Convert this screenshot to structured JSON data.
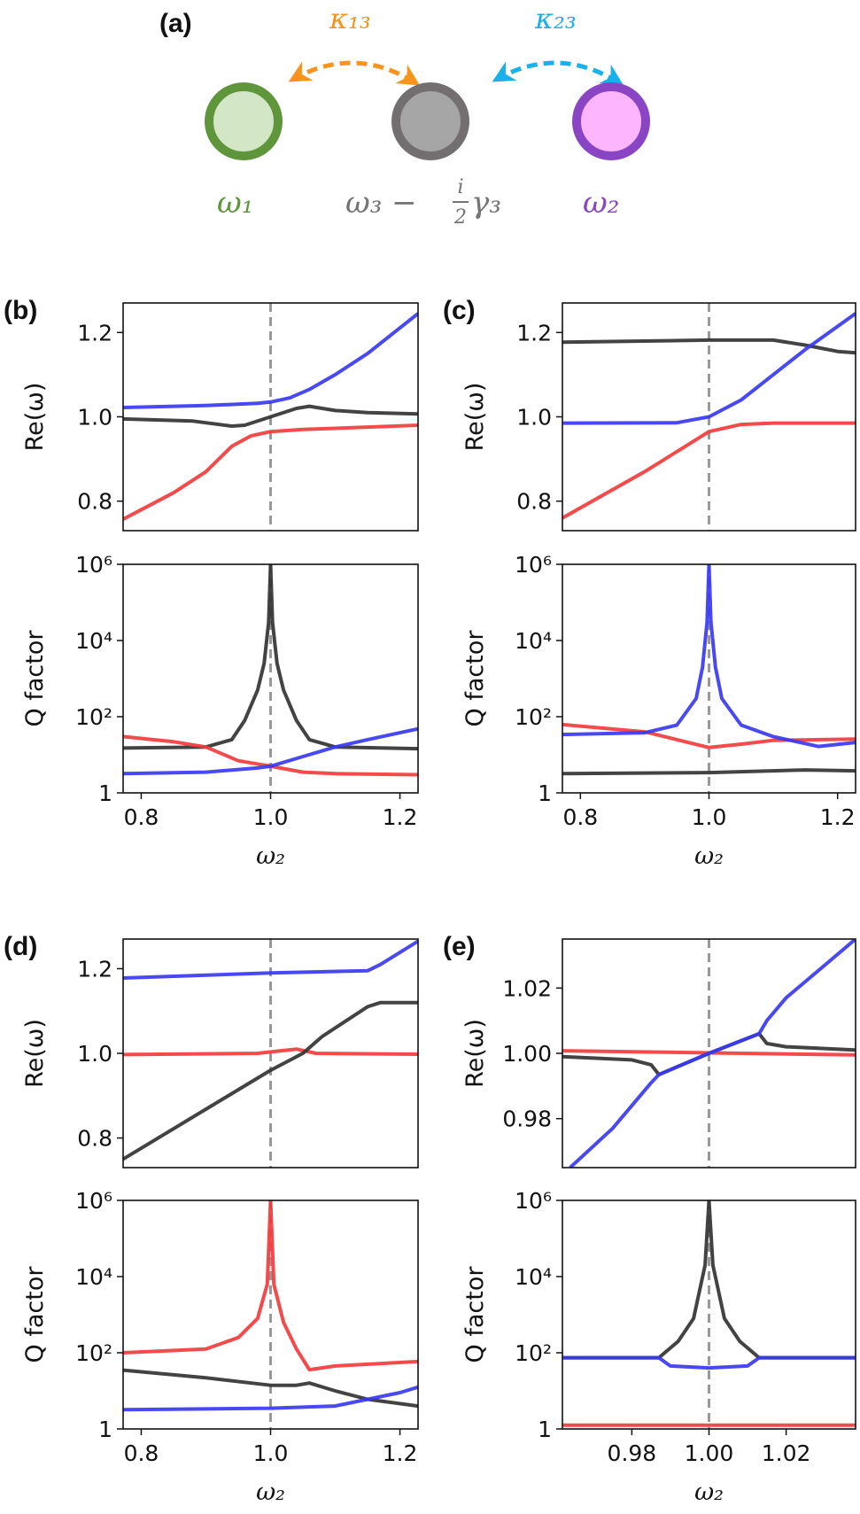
{
  "diagram": {
    "panel_label": "(a)",
    "coupling_13": "κ₁₃",
    "coupling_23": "κ₂₃",
    "node1_label": "ω₁",
    "node2_label": "ω₂",
    "node3_label": {
      "main": "ω₃ −",
      "frac_num": "i",
      "frac_den": "2",
      "tail": "γ₃"
    },
    "colors": {
      "node1": "#5f963c",
      "node1_fill": "#d3e7c6",
      "node3": "#736e70",
      "node3_fill": "#a6a6a6",
      "node2": "#8a45c4",
      "node2_fill": "#fdb6fd",
      "coupling_13": "#f7941d",
      "coupling_23": "#1ab0ec"
    }
  },
  "colors": {
    "blue": "#3a3af2",
    "red": "#f23c3c",
    "black": "#333333",
    "dashed": "#999999"
  },
  "chart_data": [
    {
      "panel": "(b)",
      "type": "line",
      "ylabel": "Re(ω)",
      "xlabel": "",
      "xlim": [
        0.772,
        1.228
      ],
      "ylim": [
        0.73,
        1.27
      ],
      "yscale": "linear",
      "yticks": [
        0.8,
        1.0,
        1.2
      ],
      "ytick_labels": [
        "0.8",
        "1.0",
        "1.2"
      ],
      "xticks": [],
      "xtick_labels": [],
      "vline": 1.0,
      "series": [
        {
          "color": "blue",
          "x": [
            0.772,
            0.9,
            0.98,
            1.0,
            1.03,
            1.06,
            1.1,
            1.15,
            1.228
          ],
          "y": [
            1.022,
            1.027,
            1.032,
            1.035,
            1.045,
            1.065,
            1.1,
            1.15,
            1.245
          ]
        },
        {
          "color": "black",
          "x": [
            0.772,
            0.88,
            0.94,
            0.96,
            1.0,
            1.04,
            1.06,
            1.1,
            1.15,
            1.228
          ],
          "y": [
            0.995,
            0.99,
            0.978,
            0.98,
            1.0,
            1.02,
            1.025,
            1.015,
            1.01,
            1.007
          ]
        },
        {
          "color": "red",
          "x": [
            0.772,
            0.85,
            0.9,
            0.94,
            0.97,
            1.0,
            1.05,
            1.228
          ],
          "y": [
            0.757,
            0.82,
            0.87,
            0.93,
            0.955,
            0.965,
            0.97,
            0.98
          ]
        }
      ]
    },
    {
      "panel": "",
      "type": "line",
      "ylabel": "Q factor",
      "xlabel": "ω₂",
      "xlim": [
        0.772,
        1.228
      ],
      "ylim": [
        1,
        1000000
      ],
      "yscale": "log",
      "yticks": [
        1,
        100,
        10000,
        1000000
      ],
      "ytick_labels": [
        "1",
        "10²",
        "10⁴",
        "10⁶"
      ],
      "xticks": [
        0.8,
        1.0,
        1.2
      ],
      "xtick_labels": [
        "0.8",
        "1.0",
        "1.2"
      ],
      "vline": 1.0,
      "series": [
        {
          "color": "black",
          "x": [
            0.772,
            0.9,
            0.94,
            0.96,
            0.98,
            0.99,
            0.997,
            1.0,
            1.003,
            1.01,
            1.02,
            1.04,
            1.06,
            1.1,
            1.228
          ],
          "y": [
            15,
            16,
            25,
            80,
            500,
            2500,
            30000,
            1000000,
            30000,
            2500,
            500,
            80,
            25,
            16,
            14.5
          ]
        },
        {
          "color": "red",
          "x": [
            0.772,
            0.85,
            0.9,
            0.95,
            1.0,
            1.05,
            1.1,
            1.228
          ],
          "y": [
            30,
            22,
            16,
            7,
            5,
            3.5,
            3.2,
            3
          ]
        },
        {
          "color": "blue",
          "x": [
            0.772,
            0.9,
            0.98,
            1.0,
            1.05,
            1.1,
            1.15,
            1.228
          ],
          "y": [
            3.2,
            3.5,
            4.5,
            5,
            9,
            16,
            25,
            48
          ]
        }
      ]
    },
    {
      "panel": "(c)",
      "type": "line",
      "ylabel": "Re(ω)",
      "xlabel": "",
      "xlim": [
        0.772,
        1.228
      ],
      "ylim": [
        0.73,
        1.27
      ],
      "yscale": "linear",
      "yticks": [
        0.8,
        1.0,
        1.2
      ],
      "ytick_labels": [
        "0.8",
        "1.0",
        "1.2"
      ],
      "xticks": [],
      "xtick_labels": [],
      "vline": 1.0,
      "series": [
        {
          "color": "black",
          "x": [
            0.772,
            1.0,
            1.1,
            1.15,
            1.2,
            1.228
          ],
          "y": [
            1.177,
            1.182,
            1.182,
            1.17,
            1.155,
            1.152
          ]
        },
        {
          "color": "blue",
          "x": [
            0.772,
            0.95,
            1.0,
            1.05,
            1.1,
            1.15,
            1.228
          ],
          "y": [
            0.985,
            0.986,
            1.0,
            1.04,
            1.1,
            1.16,
            1.245
          ]
        },
        {
          "color": "red",
          "x": [
            0.772,
            0.9,
            1.0,
            1.05,
            1.1,
            1.228
          ],
          "y": [
            0.76,
            0.87,
            0.965,
            0.982,
            0.985,
            0.985
          ]
        }
      ]
    },
    {
      "panel": "",
      "type": "line",
      "ylabel": "Q factor",
      "xlabel": "ω₂",
      "xlim": [
        0.772,
        1.228
      ],
      "ylim": [
        1,
        1000000
      ],
      "yscale": "log",
      "yticks": [
        1,
        100,
        10000,
        1000000
      ],
      "ytick_labels": [
        "1",
        "10²",
        "10⁴",
        "10⁶"
      ],
      "xticks": [
        0.8,
        1.0,
        1.2
      ],
      "xtick_labels": [
        "0.8",
        "1.0",
        "1.2"
      ],
      "vline": 1.0,
      "series": [
        {
          "color": "red",
          "x": [
            0.772,
            0.9,
            0.95,
            1.0,
            1.05,
            1.1,
            1.228
          ],
          "y": [
            62,
            40,
            25,
            15.5,
            19,
            24,
            26
          ]
        },
        {
          "color": "blue",
          "x": [
            0.772,
            0.9,
            0.95,
            0.98,
            0.99,
            0.997,
            1.0,
            1.003,
            1.01,
            1.02,
            1.05,
            1.1,
            1.17,
            1.228
          ],
          "y": [
            34,
            38,
            60,
            300,
            2000,
            30000,
            1000000,
            30000,
            2000,
            300,
            60,
            30,
            16.5,
            21
          ]
        },
        {
          "color": "black",
          "x": [
            0.772,
            1.0,
            1.15,
            1.228
          ],
          "y": [
            3.2,
            3.4,
            4,
            3.8
          ]
        }
      ]
    },
    {
      "panel": "(d)",
      "type": "line",
      "ylabel": "Re(ω)",
      "xlabel": "",
      "xlim": [
        0.772,
        1.228
      ],
      "ylim": [
        0.73,
        1.27
      ],
      "yscale": "linear",
      "yticks": [
        0.8,
        1.0,
        1.2
      ],
      "ytick_labels": [
        "0.8",
        "1.0",
        "1.2"
      ],
      "xticks": [],
      "xtick_labels": [],
      "vline": 1.0,
      "series": [
        {
          "color": "blue",
          "x": [
            0.772,
            1.0,
            1.15,
            1.17,
            1.228
          ],
          "y": [
            1.178,
            1.19,
            1.195,
            1.21,
            1.265
          ]
        },
        {
          "color": "red",
          "x": [
            0.772,
            0.98,
            1.04,
            1.07,
            1.228
          ],
          "y": [
            0.997,
            1.0,
            1.01,
            1.0,
            0.998
          ]
        },
        {
          "color": "black",
          "x": [
            0.772,
            1.0,
            1.05,
            1.08,
            1.15,
            1.17,
            1.228
          ],
          "y": [
            0.75,
            0.96,
            1.0,
            1.04,
            1.11,
            1.12,
            1.12
          ]
        }
      ]
    },
    {
      "panel": "",
      "type": "line",
      "ylabel": "Q factor",
      "xlabel": "ω₂",
      "xlim": [
        0.772,
        1.228
      ],
      "ylim": [
        1,
        1000000
      ],
      "yscale": "log",
      "yticks": [
        1,
        100,
        10000,
        1000000
      ],
      "ytick_labels": [
        "1",
        "10²",
        "10⁴",
        "10⁶"
      ],
      "xticks": [
        0.8,
        1.0,
        1.2
      ],
      "xtick_labels": [
        "0.8",
        "1.0",
        "1.2"
      ],
      "vline": 1.0,
      "series": [
        {
          "color": "red",
          "x": [
            0.772,
            0.9,
            0.95,
            0.98,
            0.995,
            1.0,
            1.005,
            1.02,
            1.04,
            1.06,
            1.1,
            1.228
          ],
          "y": [
            100,
            126,
            250,
            800,
            6300,
            1000000,
            6300,
            630,
            126,
            36,
            45,
            59
          ]
        },
        {
          "color": "black",
          "x": [
            0.772,
            0.9,
            1.0,
            1.04,
            1.06,
            1.1,
            1.15,
            1.228
          ],
          "y": [
            35,
            22,
            14,
            14,
            16,
            10,
            6,
            4
          ]
        },
        {
          "color": "blue",
          "x": [
            0.772,
            1.0,
            1.1,
            1.2,
            1.228
          ],
          "y": [
            3.2,
            3.5,
            4,
            9,
            12.5
          ]
        }
      ]
    },
    {
      "panel": "(e)",
      "type": "line",
      "ylabel": "Re(ω)",
      "xlabel": "",
      "xlim": [
        0.962,
        1.038
      ],
      "ylim": [
        0.965,
        1.035
      ],
      "yscale": "linear",
      "yticks": [
        0.98,
        1.0,
        1.02
      ],
      "ytick_labels": [
        "0.98",
        "1.00",
        "1.02"
      ],
      "xticks": [],
      "xtick_labels": [],
      "vline": 1.0,
      "series": [
        {
          "color": "red",
          "x": [
            0.962,
            1.038
          ],
          "y": [
            1.0008,
            0.9995
          ]
        },
        {
          "color": "black",
          "x": [
            0.962,
            0.98,
            0.985,
            0.987,
            1.0,
            1.013,
            1.015,
            1.02,
            1.038
          ],
          "y": [
            0.999,
            0.998,
            0.9965,
            0.9935,
            1.0,
            1.006,
            1.003,
            1.002,
            1.001
          ]
        },
        {
          "color": "blue",
          "x": [
            0.964,
            0.975,
            0.985,
            0.987,
            1.0,
            1.013,
            1.015,
            1.02,
            1.03,
            1.038
          ],
          "y": [
            0.965,
            0.977,
            0.991,
            0.9935,
            1.0,
            1.006,
            1.01,
            1.017,
            1.027,
            1.035
          ]
        }
      ]
    },
    {
      "panel": "",
      "type": "line",
      "ylabel": "Q factor",
      "xlabel": "ω₂",
      "xlim": [
        0.962,
        1.038
      ],
      "ylim": [
        1,
        1000000
      ],
      "yscale": "log",
      "yticks": [
        1,
        100,
        10000,
        1000000
      ],
      "ytick_labels": [
        "1",
        "10²",
        "10⁴",
        "10⁶"
      ],
      "xticks": [
        0.98,
        1.0,
        1.02
      ],
      "xtick_labels": [
        "0.98",
        "1.00",
        "1.02"
      ],
      "vline": 1.0,
      "series": [
        {
          "color": "red",
          "x": [
            0.962,
            1.038
          ],
          "y": [
            1.25,
            1.25
          ]
        },
        {
          "color": "black",
          "x": [
            0.962,
            0.987,
            0.992,
            0.996,
            0.999,
            1.0,
            1.001,
            1.004,
            1.008,
            1.013,
            1.038
          ],
          "y": [
            74,
            74,
            200,
            800,
            20000,
            1000000,
            20000,
            800,
            200,
            74,
            74
          ]
        },
        {
          "color": "blue",
          "x": [
            0.962,
            0.987,
            0.99,
            1.0,
            1.01,
            1.013,
            1.038
          ],
          "y": [
            74,
            74,
            45,
            40,
            45,
            74,
            74
          ]
        }
      ]
    }
  ]
}
